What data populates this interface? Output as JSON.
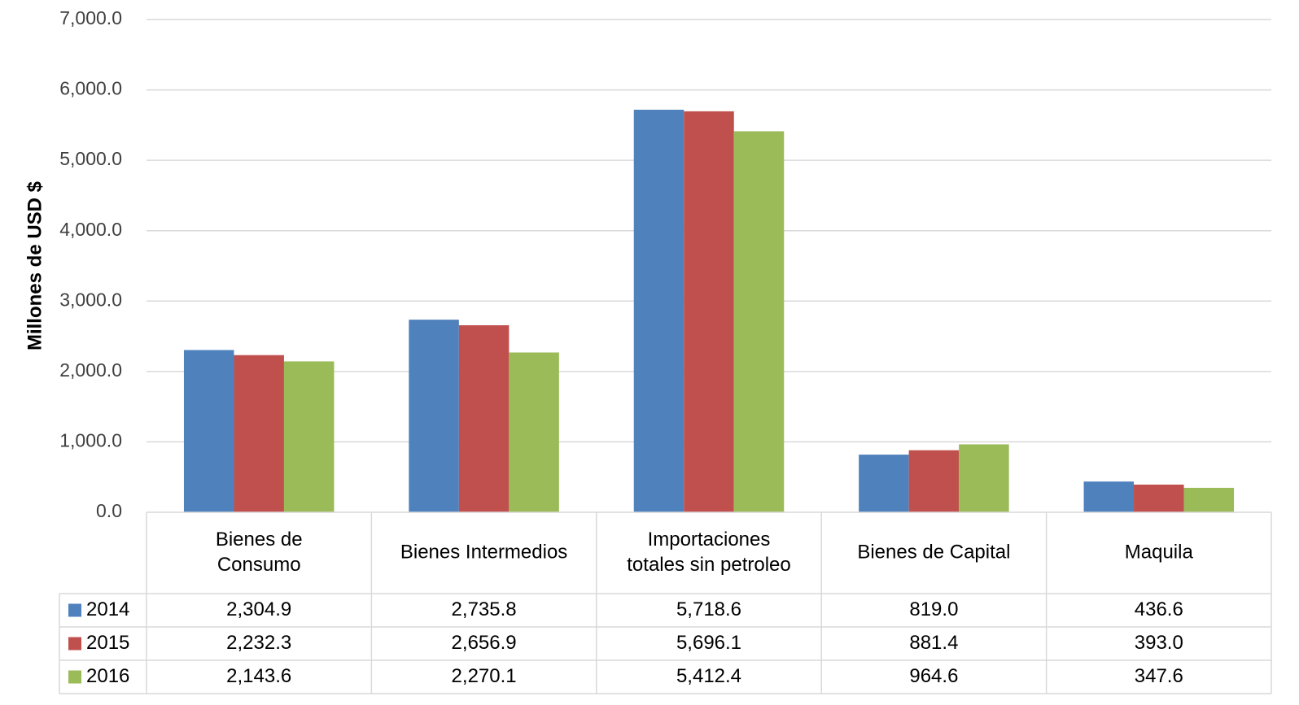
{
  "chart_data": {
    "type": "bar",
    "title": "",
    "xlabel": "",
    "ylabel": "Millones de USD $",
    "ylim": [
      0,
      7000
    ],
    "yticks": [
      "0.0",
      "1,000.0",
      "2,000.0",
      "3,000.0",
      "4,000.0",
      "5,000.0",
      "6,000.0",
      "7,000.0"
    ],
    "grid": true,
    "categories": [
      [
        "Bienes de",
        "Consumo"
      ],
      [
        "Bienes Intermedios"
      ],
      [
        "Importaciones",
        "totales sin petroleo"
      ],
      [
        "Bienes de Capital"
      ],
      [
        "Maquila"
      ]
    ],
    "series": [
      {
        "name": "2014",
        "color": "#4F81BD",
        "values": [
          2304.9,
          2735.8,
          5718.6,
          819.0,
          436.6
        ],
        "labels": [
          "2,304.9",
          "2,735.8",
          "5,718.6",
          "819.0",
          "436.6"
        ]
      },
      {
        "name": "2015",
        "color": "#C0504D",
        "values": [
          2232.3,
          2656.9,
          5696.1,
          881.4,
          393.0
        ],
        "labels": [
          "2,232.3",
          "2,656.9",
          "5,696.1",
          "881.4",
          "393.0"
        ]
      },
      {
        "name": "2016",
        "color": "#9BBB59",
        "values": [
          2143.6,
          2270.1,
          5412.4,
          964.6,
          347.6
        ],
        "labels": [
          "2,143.6",
          "2,270.1",
          "5,412.4",
          "964.6",
          "347.6"
        ]
      }
    ],
    "legend": "data-table"
  }
}
